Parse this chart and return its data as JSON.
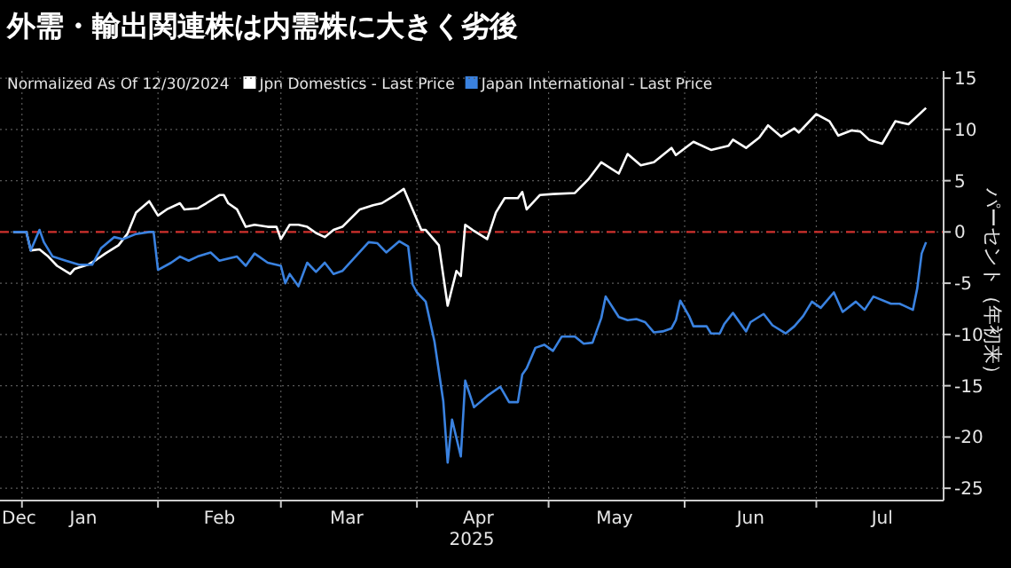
{
  "chart_data": {
    "type": "line",
    "title": "外需・輸出関連株は内需株に大きく劣後",
    "subtitle": "Normalized As Of 12/30/2024",
    "xlabel": "2025",
    "ylabel": "パーセント（年初来）",
    "xlim": [
      "2024-12-27",
      "2025-07-30"
    ],
    "ylim": [
      -26.2,
      15.7
    ],
    "yticks": [
      15,
      10,
      5,
      0,
      -5,
      -10,
      -15,
      -20,
      -25
    ],
    "xticks": [
      {
        "value": "2024-12-30",
        "label": "Dec"
      },
      {
        "value": "2025-01-01",
        "label": null
      },
      {
        "value": "2025-01-15",
        "label": "Jan"
      },
      {
        "value": "2025-02-01",
        "label": null
      },
      {
        "value": "2025-02-15",
        "label": "Feb"
      },
      {
        "value": "2025-03-01",
        "label": null
      },
      {
        "value": "2025-03-16",
        "label": "Mar"
      },
      {
        "value": "2025-04-01",
        "label": null
      },
      {
        "value": "2025-04-15",
        "label": "Apr"
      },
      {
        "value": "2025-05-01",
        "label": null
      },
      {
        "value": "2025-05-16",
        "label": "May"
      },
      {
        "value": "2025-06-01",
        "label": null
      },
      {
        "value": "2025-06-16",
        "label": "Jun"
      },
      {
        "value": "2025-07-01",
        "label": null
      },
      {
        "value": "2025-07-16",
        "label": "Jul"
      }
    ],
    "grid": true,
    "legend": "top left",
    "ref_lines": [
      {
        "axis": "y",
        "value": 0,
        "label": null,
        "color": "#d0312d",
        "line_style": "dashed"
      }
    ],
    "series": [
      {
        "name": "Jpn Domestics - Last Price",
        "color": "#ffffff",
        "x": [
          "2024-12-30",
          "2025-01-02",
          "2025-01-03",
          "2025-01-05",
          "2025-01-07",
          "2025-01-09",
          "2025-01-12",
          "2025-01-13",
          "2025-01-16",
          "2025-01-18",
          "2025-01-20",
          "2025-01-23",
          "2025-01-25",
          "2025-01-27",
          "2025-01-30",
          "2025-02-01",
          "2025-02-03",
          "2025-02-06",
          "2025-02-07",
          "2025-02-10",
          "2025-02-12",
          "2025-02-15",
          "2025-02-16",
          "2025-02-17",
          "2025-02-19",
          "2025-02-21",
          "2025-02-23",
          "2025-02-26",
          "2025-02-28",
          "2025-03-01",
          "2025-03-03",
          "2025-03-05",
          "2025-03-07",
          "2025-03-09",
          "2025-03-11",
          "2025-03-13",
          "2025-03-15",
          "2025-03-19",
          "2025-03-22",
          "2025-03-24",
          "2025-03-27",
          "2025-03-29",
          "2025-03-31",
          "2025-04-02",
          "2025-04-03",
          "2025-04-06",
          "2025-04-08",
          "2025-04-10",
          "2025-04-11",
          "2025-04-12",
          "2025-04-14",
          "2025-04-17",
          "2025-04-19",
          "2025-04-21",
          "2025-04-24",
          "2025-04-25",
          "2025-04-26",
          "2025-04-29",
          "2025-05-02",
          "2025-05-07",
          "2025-05-10",
          "2025-05-13",
          "2025-05-17",
          "2025-05-19",
          "2025-05-22",
          "2025-05-25",
          "2025-05-29",
          "2025-05-30",
          "2025-06-03",
          "2025-06-07",
          "2025-06-11",
          "2025-06-12",
          "2025-06-15",
          "2025-06-18",
          "2025-06-20",
          "2025-06-23",
          "2025-06-26",
          "2025-06-27",
          "2025-07-01",
          "2025-07-04",
          "2025-07-06",
          "2025-07-09",
          "2025-07-11",
          "2025-07-13",
          "2025-07-16",
          "2025-07-19",
          "2025-07-22",
          "2025-07-26"
        ],
        "values": [
          0,
          0,
          -1.8,
          -1.7,
          -2.4,
          -3.3,
          -4.1,
          -3.6,
          -3.2,
          -2.7,
          -2.1,
          -1.3,
          -0.2,
          1.9,
          3.0,
          1.6,
          2.2,
          2.8,
          2.2,
          2.3,
          2.8,
          3.6,
          3.6,
          2.8,
          2.2,
          0.5,
          0.7,
          0.5,
          0.5,
          -0.7,
          0.7,
          0.7,
          0.5,
          -0.1,
          -0.5,
          0.2,
          0.5,
          2.2,
          2.6,
          2.8,
          3.6,
          4.2,
          2.2,
          0.2,
          0.2,
          -1.3,
          -7.2,
          -3.8,
          -4.3,
          0.7,
          0.1,
          -0.7,
          1.9,
          3.3,
          3.3,
          3.9,
          2.2,
          3.6,
          3.7,
          3.8,
          5.1,
          6.8,
          5.7,
          7.6,
          6.5,
          6.8,
          8.2,
          7.5,
          8.8,
          8.0,
          8.4,
          9.0,
          8.2,
          9.2,
          10.4,
          9.3,
          10.1,
          9.7,
          11.5,
          10.8,
          9.4,
          9.9,
          9.8,
          9.0,
          8.6,
          10.8,
          10.5,
          12.1
        ]
      },
      {
        "name": "Japan International - Last Price",
        "color": "#3a82e0",
        "x": [
          "2024-12-30",
          "2025-01-02",
          "2025-01-03",
          "2025-01-05",
          "2025-01-06",
          "2025-01-08",
          "2025-01-11",
          "2025-01-14",
          "2025-01-17",
          "2025-01-19",
          "2025-01-22",
          "2025-01-24",
          "2025-01-27",
          "2025-01-30",
          "2025-01-31",
          "2025-02-01",
          "2025-02-04",
          "2025-02-06",
          "2025-02-08",
          "2025-02-10",
          "2025-02-13",
          "2025-02-15",
          "2025-02-19",
          "2025-02-21",
          "2025-02-23",
          "2025-02-26",
          "2025-03-01",
          "2025-03-02",
          "2025-03-03",
          "2025-03-05",
          "2025-03-07",
          "2025-03-09",
          "2025-03-11",
          "2025-03-13",
          "2025-03-15",
          "2025-03-18",
          "2025-03-21",
          "2025-03-23",
          "2025-03-25",
          "2025-03-28",
          "2025-03-30",
          "2025-03-31",
          "2025-04-01",
          "2025-04-03",
          "2025-04-05",
          "2025-04-07",
          "2025-04-08",
          "2025-04-09",
          "2025-04-11",
          "2025-04-12",
          "2025-04-14",
          "2025-04-17",
          "2025-04-20",
          "2025-04-22",
          "2025-04-24",
          "2025-04-25",
          "2025-04-26",
          "2025-04-28",
          "2025-04-30",
          "2025-05-02",
          "2025-05-04",
          "2025-05-07",
          "2025-05-09",
          "2025-05-11",
          "2025-05-13",
          "2025-05-14",
          "2025-05-17",
          "2025-05-19",
          "2025-05-21",
          "2025-05-23",
          "2025-05-25",
          "2025-05-27",
          "2025-05-29",
          "2025-05-30",
          "2025-05-31",
          "2025-06-02",
          "2025-06-03",
          "2025-06-06",
          "2025-06-07",
          "2025-06-09",
          "2025-06-10",
          "2025-06-12",
          "2025-06-15",
          "2025-06-16",
          "2025-06-19",
          "2025-06-21",
          "2025-06-24",
          "2025-06-26",
          "2025-06-28",
          "2025-06-30",
          "2025-07-02",
          "2025-07-05",
          "2025-07-07",
          "2025-07-10",
          "2025-07-12",
          "2025-07-14",
          "2025-07-18",
          "2025-07-20",
          "2025-07-23",
          "2025-07-24",
          "2025-07-25",
          "2025-07-26"
        ],
        "values": [
          0,
          0,
          -1.8,
          0.2,
          -1.0,
          -2.4,
          -2.8,
          -3.2,
          -3.2,
          -1.6,
          -0.5,
          -0.7,
          -0.2,
          0,
          0,
          -3.7,
          -3.0,
          -2.4,
          -2.8,
          -2.4,
          -2.0,
          -2.8,
          -2.4,
          -3.3,
          -2.1,
          -3.0,
          -3.3,
          -5.0,
          -4.1,
          -5.3,
          -3.0,
          -3.9,
          -3.0,
          -4.1,
          -3.8,
          -2.4,
          -1.0,
          -1.1,
          -2.0,
          -0.9,
          -1.4,
          -5.1,
          -5.9,
          -6.8,
          -10.7,
          -16.5,
          -22.5,
          -18.3,
          -21.9,
          -14.5,
          -17.1,
          -16.0,
          -15.1,
          -16.6,
          -16.6,
          -13.9,
          -13.3,
          -11.3,
          -11.0,
          -11.6,
          -10.2,
          -10.2,
          -10.9,
          -10.8,
          -8.4,
          -6.3,
          -8.3,
          -8.6,
          -8.5,
          -8.8,
          -9.8,
          -9.7,
          -9.4,
          -8.6,
          -6.7,
          -8.2,
          -9.2,
          -9.2,
          -9.9,
          -9.9,
          -9.0,
          -7.9,
          -9.7,
          -8.8,
          -8.0,
          -9.1,
          -9.9,
          -9.2,
          -8.2,
          -6.8,
          -7.4,
          -5.9,
          -7.8,
          -6.8,
          -7.6,
          -6.3,
          -7.0,
          -7.0,
          -7.6,
          -5.5,
          -2.1,
          -1.0
        ]
      }
    ]
  }
}
